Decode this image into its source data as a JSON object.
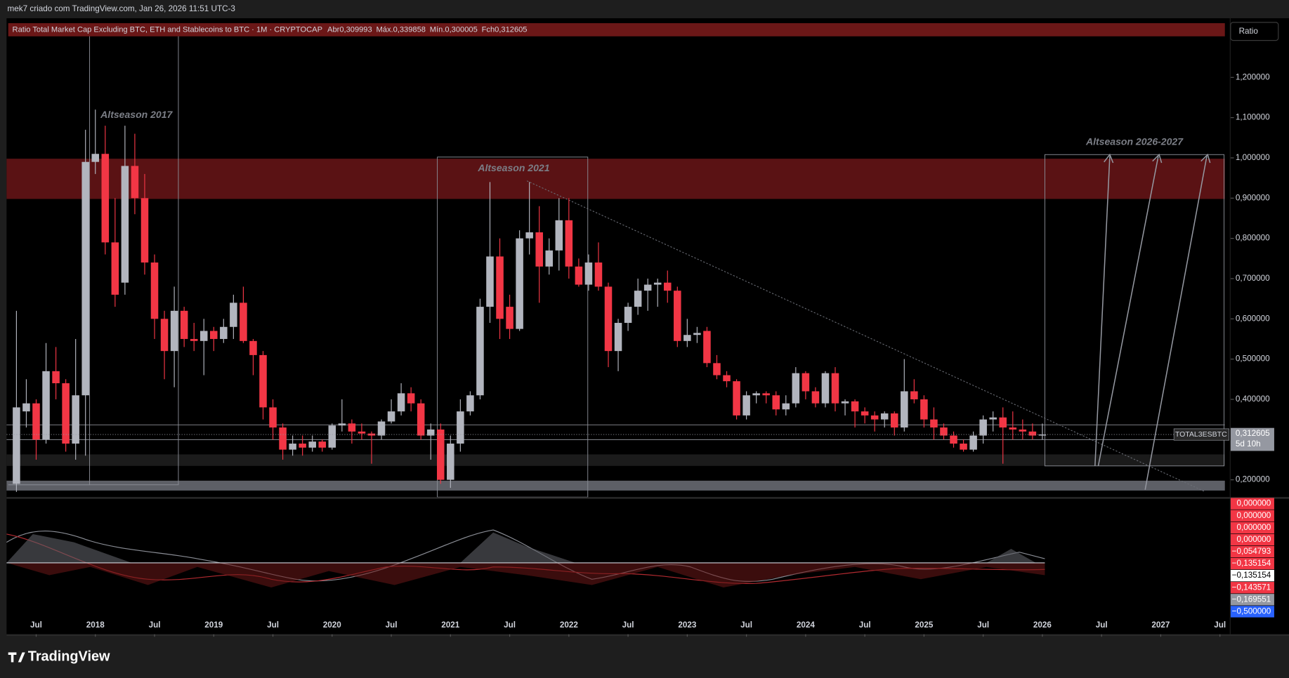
{
  "attribution": "mek7 criado com TradingView.com, Jan 26, 2026 11:51 UTC-3",
  "brand": "TradingView",
  "scale_button": "Ratio",
  "chart_data": {
    "type": "candlestick",
    "title": "Ratio Total Market Cap Excluding BTC, ETH and Stablecoins to BTC · 1M · CRYPTOCAP",
    "ohlc_legend": [
      {
        "key": "Abr",
        "value": "0,309993"
      },
      {
        "key": "Máx.",
        "value": "0,339858"
      },
      {
        "key": "Mín.",
        "value": "0,300005"
      },
      {
        "key": "Fch",
        "value": "0,312605"
      }
    ],
    "annotations": [
      "Altseason 2017",
      "Altseason 2021",
      "Altseason 2026-2027"
    ],
    "up_color": "#b2b5be",
    "down_color": "#f23645",
    "x": [
      "2017-05",
      "2017-06",
      "2017-07",
      "2017-08",
      "2017-09",
      "2017-10",
      "2017-11",
      "2017-12",
      "2018-01",
      "2018-02",
      "2018-03",
      "2018-04",
      "2018-05",
      "2018-06",
      "2018-07",
      "2018-08",
      "2018-09",
      "2018-10",
      "2018-11",
      "2018-12",
      "2019-01",
      "2019-02",
      "2019-03",
      "2019-04",
      "2019-05",
      "2019-06",
      "2019-07",
      "2019-08",
      "2019-09",
      "2019-10",
      "2019-11",
      "2019-12",
      "2020-01",
      "2020-02",
      "2020-03",
      "2020-04",
      "2020-05",
      "2020-06",
      "2020-07",
      "2020-08",
      "2020-09",
      "2020-10",
      "2020-11",
      "2020-12",
      "2021-01",
      "2021-02",
      "2021-03",
      "2021-04",
      "2021-05",
      "2021-06",
      "2021-07",
      "2021-08",
      "2021-09",
      "2021-10",
      "2021-11",
      "2021-12",
      "2022-01",
      "2022-02",
      "2022-03",
      "2022-04",
      "2022-05",
      "2022-06",
      "2022-07",
      "2022-08",
      "2022-09",
      "2022-10",
      "2022-11",
      "2022-12",
      "2023-01",
      "2023-02",
      "2023-03",
      "2023-04",
      "2023-05",
      "2023-06",
      "2023-07",
      "2023-08",
      "2023-09",
      "2023-10",
      "2023-11",
      "2023-12",
      "2024-01",
      "2024-02",
      "2024-03",
      "2024-04",
      "2024-05",
      "2024-06",
      "2024-07",
      "2024-08",
      "2024-09",
      "2024-10",
      "2024-11",
      "2024-12",
      "2025-01",
      "2025-02",
      "2025-03",
      "2025-04",
      "2025-05",
      "2025-06",
      "2025-07",
      "2025-08",
      "2025-09",
      "2025-10",
      "2025-11",
      "2025-12",
      "2026-01"
    ],
    "open": [
      0.19,
      0.37,
      0.39,
      0.3,
      0.47,
      0.44,
      0.29,
      0.41,
      0.99,
      1.01,
      0.79,
      0.69,
      0.98,
      0.9,
      0.74,
      0.6,
      0.52,
      0.62,
      0.55,
      0.545,
      0.57,
      0.55,
      0.58,
      0.64,
      0.545,
      0.51,
      0.38,
      0.33,
      0.275,
      0.29,
      0.28,
      0.295,
      0.28,
      0.335,
      0.34,
      0.32,
      0.315,
      0.31,
      0.345,
      0.37,
      0.415,
      0.39,
      0.31,
      0.325,
      0.2,
      0.29,
      0.37,
      0.41,
      0.63,
      0.755,
      0.63,
      0.575,
      0.8,
      0.815,
      0.73,
      0.77,
      0.845,
      0.73,
      0.685,
      0.74,
      0.68,
      0.52,
      0.59,
      0.63,
      0.67,
      0.685,
      0.69,
      0.67,
      0.545,
      0.56,
      0.57,
      0.49,
      0.46,
      0.445,
      0.36,
      0.41,
      0.415,
      0.41,
      0.375,
      0.39,
      0.465,
      0.42,
      0.39,
      0.465,
      0.39,
      0.395,
      0.37,
      0.36,
      0.35,
      0.365,
      0.33,
      0.42,
      0.4,
      0.35,
      0.33,
      0.31,
      0.29,
      0.275,
      0.31,
      0.35,
      0.355,
      0.33,
      0.325,
      0.32,
      0.309993
    ],
    "high": [
      0.62,
      0.45,
      0.4,
      0.54,
      0.53,
      0.45,
      0.55,
      1.07,
      1.12,
      1.08,
      0.9,
      1.08,
      1.06,
      0.96,
      0.76,
      0.62,
      0.68,
      0.63,
      0.59,
      0.6,
      0.58,
      0.6,
      0.66,
      0.68,
      0.55,
      0.52,
      0.4,
      0.34,
      0.31,
      0.31,
      0.31,
      0.3,
      0.34,
      0.4,
      0.35,
      0.34,
      0.32,
      0.35,
      0.4,
      0.44,
      0.43,
      0.4,
      0.34,
      0.34,
      0.31,
      0.4,
      0.42,
      0.65,
      0.94,
      0.8,
      0.66,
      0.82,
      0.94,
      0.88,
      0.8,
      0.9,
      0.9,
      0.75,
      0.76,
      0.79,
      0.69,
      0.6,
      0.64,
      0.7,
      0.7,
      0.7,
      0.72,
      0.68,
      0.6,
      0.58,
      0.58,
      0.51,
      0.47,
      0.45,
      0.42,
      0.42,
      0.42,
      0.42,
      0.41,
      0.48,
      0.47,
      0.43,
      0.47,
      0.48,
      0.4,
      0.4,
      0.38,
      0.37,
      0.37,
      0.37,
      0.5,
      0.45,
      0.41,
      0.38,
      0.34,
      0.32,
      0.3,
      0.32,
      0.36,
      0.37,
      0.38,
      0.37,
      0.35,
      0.34,
      0.339858
    ],
    "low": [
      0.17,
      0.33,
      0.25,
      0.29,
      0.4,
      0.27,
      0.25,
      0.26,
      0.96,
      0.76,
      0.63,
      0.66,
      0.86,
      0.71,
      0.55,
      0.45,
      0.43,
      0.53,
      0.52,
      0.46,
      0.52,
      0.54,
      0.55,
      0.54,
      0.46,
      0.35,
      0.3,
      0.25,
      0.26,
      0.26,
      0.27,
      0.27,
      0.275,
      0.32,
      0.29,
      0.3,
      0.24,
      0.3,
      0.34,
      0.36,
      0.37,
      0.3,
      0.25,
      0.19,
      0.18,
      0.27,
      0.36,
      0.4,
      0.59,
      0.55,
      0.55,
      0.57,
      0.76,
      0.64,
      0.71,
      0.72,
      0.7,
      0.68,
      0.67,
      0.67,
      0.48,
      0.47,
      0.57,
      0.61,
      0.62,
      0.63,
      0.64,
      0.53,
      0.53,
      0.54,
      0.48,
      0.45,
      0.43,
      0.35,
      0.35,
      0.39,
      0.39,
      0.36,
      0.36,
      0.38,
      0.4,
      0.38,
      0.38,
      0.37,
      0.36,
      0.33,
      0.34,
      0.32,
      0.33,
      0.31,
      0.32,
      0.39,
      0.33,
      0.3,
      0.3,
      0.28,
      0.27,
      0.27,
      0.29,
      0.32,
      0.24,
      0.3,
      0.3,
      0.3,
      0.300005
    ],
    "close": [
      0.38,
      0.39,
      0.3,
      0.47,
      0.44,
      0.29,
      0.41,
      0.99,
      1.01,
      0.79,
      0.66,
      0.98,
      0.9,
      0.74,
      0.6,
      0.52,
      0.62,
      0.55,
      0.545,
      0.57,
      0.55,
      0.58,
      0.64,
      0.545,
      0.51,
      0.38,
      0.33,
      0.275,
      0.29,
      0.28,
      0.295,
      0.28,
      0.335,
      0.34,
      0.32,
      0.315,
      0.31,
      0.345,
      0.37,
      0.415,
      0.39,
      0.31,
      0.325,
      0.2,
      0.29,
      0.37,
      0.41,
      0.63,
      0.755,
      0.6,
      0.575,
      0.8,
      0.815,
      0.73,
      0.77,
      0.845,
      0.73,
      0.685,
      0.74,
      0.68,
      0.52,
      0.59,
      0.63,
      0.67,
      0.685,
      0.69,
      0.67,
      0.545,
      0.56,
      0.565,
      0.49,
      0.46,
      0.445,
      0.36,
      0.41,
      0.415,
      0.41,
      0.375,
      0.39,
      0.465,
      0.42,
      0.39,
      0.465,
      0.39,
      0.395,
      0.37,
      0.36,
      0.35,
      0.365,
      0.33,
      0.42,
      0.4,
      0.35,
      0.33,
      0.31,
      0.29,
      0.275,
      0.31,
      0.35,
      0.355,
      0.33,
      0.325,
      0.32,
      0.31,
      0.312605
    ],
    "last": {
      "symbol": "TOTAL3ESBTC",
      "price_label": "0,312605",
      "countdown": "5d 10h"
    },
    "xlim": [
      "2017-04",
      "2027-08"
    ],
    "xticks": [
      {
        "value": "2017-07",
        "label": "Jul"
      },
      {
        "value": "2018-01",
        "label": "2018"
      },
      {
        "value": "2018-07",
        "label": "Jul"
      },
      {
        "value": "2019-01",
        "label": "2019"
      },
      {
        "value": "2019-07",
        "label": "Jul"
      },
      {
        "value": "2020-01",
        "label": "2020"
      },
      {
        "value": "2020-07",
        "label": "Jul"
      },
      {
        "value": "2021-01",
        "label": "2021"
      },
      {
        "value": "2021-07",
        "label": "Jul"
      },
      {
        "value": "2022-01",
        "label": "2022"
      },
      {
        "value": "2022-07",
        "label": "Jul"
      },
      {
        "value": "2023-01",
        "label": "2023"
      },
      {
        "value": "2023-07",
        "label": "Jul"
      },
      {
        "value": "2024-01",
        "label": "2024"
      },
      {
        "value": "2024-07",
        "label": "Jul"
      },
      {
        "value": "2025-01",
        "label": "2025"
      },
      {
        "value": "2025-07",
        "label": "Jul"
      },
      {
        "value": "2026-01",
        "label": "2026"
      },
      {
        "value": "2026-07",
        "label": "Jul"
      },
      {
        "value": "2027-01",
        "label": "2027"
      },
      {
        "value": "2027-07",
        "label": "Jul"
      }
    ],
    "ylim": [
      0.157,
      1.347
    ],
    "yticks": [
      {
        "value": 1.2,
        "label": "1,200000"
      },
      {
        "value": 1.1,
        "label": "1,100000"
      },
      {
        "value": 1.0,
        "label": "1,000000"
      },
      {
        "value": 0.9,
        "label": "0,900000"
      },
      {
        "value": 0.8,
        "label": "0,800000"
      },
      {
        "value": 0.7,
        "label": "0,700000"
      },
      {
        "value": 0.6,
        "label": "0,600000"
      },
      {
        "value": 0.5,
        "label": "0,500000"
      },
      {
        "value": 0.4,
        "label": "0,400000"
      },
      {
        "value": 0.2,
        "label": "0,200000"
      }
    ],
    "grid": false,
    "indicator_labels": [
      {
        "label": "0,000000",
        "color": "#f23645"
      },
      {
        "label": "0,000000",
        "color": "#f23645"
      },
      {
        "label": "0,000000",
        "color": "#f23645"
      },
      {
        "label": "0,000000",
        "color": "#f23645"
      },
      {
        "label": "−0,054793",
        "color": "#f23645"
      },
      {
        "label": "−0,135154",
        "color": "#f23645"
      },
      {
        "label": "−0,135154",
        "color": "#ffffff"
      },
      {
        "label": "−0,143571",
        "color": "#f23645"
      },
      {
        "label": "−0,169551",
        "color": "#9598a1"
      },
      {
        "label": "−0,500000",
        "color": "#2962ff"
      }
    ]
  }
}
